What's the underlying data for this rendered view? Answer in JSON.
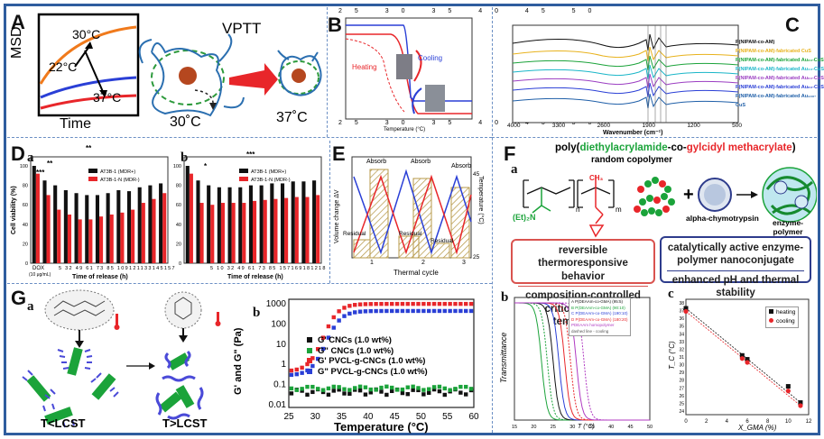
{
  "panels": {
    "A": {
      "label": "A",
      "y_axis": "MSD",
      "x_axis": "Time",
      "temp_high": "30°C",
      "temp_low": "22°C",
      "temp_body": "37°C",
      "title": "VPTT",
      "state_left": "30˚C",
      "state_right": "37˚C"
    },
    "B": {
      "label": "B",
      "xlabel": "Temperature (°C)",
      "ylabel": "Transmittance (%)",
      "cooling": "Cooling",
      "heating": "Heating",
      "top_ticks": [
        "25",
        "30",
        "35",
        "40",
        "45",
        "50"
      ],
      "bottom_ticks": [
        "25",
        "30",
        "35",
        "40",
        "45",
        "50"
      ],
      "left_ticks": [
        "100",
        "80",
        "60",
        "40",
        "20",
        "0"
      ],
      "right_ticks": [
        "80",
        "60",
        "40",
        "20",
        "0"
      ]
    },
    "C": {
      "label": "C",
      "xlabel": "Wavenumber (cm⁻¹)",
      "ylabel": "Transmission (%)",
      "ticks": [
        "4000",
        "3300",
        "2600",
        "1900",
        "1200",
        "500"
      ],
      "peaks": [
        "1648",
        "1537",
        "1458",
        "1383"
      ],
      "legend": [
        "P(NIPAM-co-AM)",
        "P(NIPAM-co-AM)-fabricated CuS",
        "P(NIPAM-co-AM)-fabricated Au₂₀-CuS",
        "P(NIPAM-co-AM)-fabricated Au₄₀-CuS",
        "P(NIPAM-co-AM)-fabricated Au₆₀-CuS",
        "P(NIPAM-co-AM)-fabricated Au₈₀-CuS",
        "P(NIPAM-co-AM)-fabricated Au₁₀₀-CuS"
      ]
    },
    "D": {
      "label": "D",
      "sub_a": "a",
      "sub_b": "b",
      "ylabel": "Cell viability (%)",
      "xlabel": "Time of release (h)",
      "legend_black": "AT3B-1 (MDR+)",
      "legend_red": "AT3B-1-N (MDR-)",
      "dox": "DOX",
      "dox_conc": "(10 μg/mL)",
      "a_ticks": "5 32 49 61 73 85 109121133145157",
      "b_ticks": "5 10 32 49 61 73 85 157169181218",
      "sig": [
        "**",
        "***",
        "**",
        "*",
        "***"
      ],
      "y_ticks": [
        "100",
        "80",
        "60",
        "40",
        "20",
        "0"
      ]
    },
    "E": {
      "label": "E",
      "ylabel": "Volume change ΔV",
      "xlabel": "Thermal cycle",
      "y2label": "Temperature (°C)",
      "absorb": "Absorb",
      "residual": "Residual",
      "ticks": [
        "1",
        "2",
        "3"
      ],
      "right_ticks": [
        "45",
        "25"
      ]
    },
    "F": {
      "label": "F",
      "sub_a": "a",
      "title_plain": "poly(",
      "title_green": "diethylacrylamide",
      "title_mid": "-co-",
      "title_red": "gylcidyl methacrylate",
      "title_end": ")",
      "subtitle": "random copolymer",
      "chem_ch3": "CH₃",
      "chem_amide": "(Et)₂N",
      "chem_n": "n",
      "chem_m": "m",
      "enzyme": "alpha-chymotrypsin",
      "product": "enzyme-polymer nanoparticle",
      "box_red_1": "reversible thermoresponsive behavior",
      "box_red_2": "composition-controlled critical solution temperature",
      "box_blue_1": "catalytically active enzyme-polymer nanoconjugate",
      "box_blue_2": "enhanced pH and thermal stability"
    },
    "Fb": {
      "sub": "b",
      "xlabel": "T (°C)",
      "ylabel": "Transmittance",
      "legend": [
        "A  P(DEAAm-co-GMA) (95:5)",
        "B  P(DEAAm-co-GMA) (90:10)",
        "C  P(DEAAm-co-GMA) (190:10)",
        "D  P(DEAAm-co-GMA) (180:20)",
        "PDEAAm homopolymer",
        "dashed line - cooling"
      ],
      "ticks": [
        "15",
        "20",
        "25",
        "30",
        "35",
        "40",
        "45",
        "50"
      ]
    },
    "Fc": {
      "sub": "c",
      "xlabel": "X_GMA (%)",
      "ylabel": "T_C (°C)",
      "legend_heating": "heating",
      "legend_cooling": "cooling",
      "x_ticks": [
        "0",
        "2",
        "4",
        "6",
        "8",
        "10",
        "12"
      ],
      "y_ticks": [
        "38",
        "37",
        "36",
        "35",
        "34",
        "33",
        "32",
        "31",
        "30",
        "29",
        "28",
        "27",
        "26",
        "25",
        "24"
      ]
    },
    "G": {
      "label": "G",
      "sub_a": "a",
      "sub_b": "b",
      "cond_low": "T<LCST",
      "cond_high": "T>LCST",
      "xlabel": "Temperature (°C)",
      "ylabel": "G' and G\" (Pa)",
      "legend": [
        "G'   CNCs (1.0 wt%)",
        "G\"   CNCs (1.0 wt%)",
        "G'   PVCL-g-CNCs (1.0 wt%)",
        "G\"   PVCL-g-CNCs (1.0 wt%)"
      ],
      "x_ticks": [
        "25",
        "30",
        "35",
        "40",
        "45",
        "50",
        "55",
        "60"
      ],
      "y_ticks": [
        "1000",
        "100",
        "10",
        "1",
        "0.1",
        "0.01"
      ]
    }
  },
  "colors": {
    "frame": "#2f5d9e",
    "red": "#e8262a",
    "blue": "#2a3fd6",
    "green": "#1ba33a",
    "black": "#111111"
  }
}
